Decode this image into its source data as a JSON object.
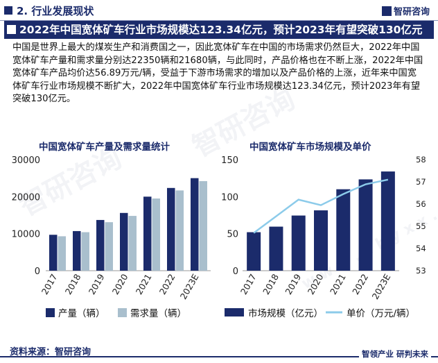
{
  "header": {
    "section_title": "2. 行业发展现状",
    "brand": "智研咨询"
  },
  "headline": "2022年中国宽体矿车行业市场规模达123.34亿元，预计2023年有望突破130亿元",
  "body_text": "中国是世界上最大的煤炭生产和消费国之一，因此宽体矿车在中国的市场需求仍然巨大，2022年中国宽体矿车产量和需求量分别达22350辆和21680辆，与此同时，产品价格也在不断上涨，2022年中国宽体矿车产品均价达56.89万元/辆，受益于下游市场需求的增加以及产品价格的上涨，近年来中国宽体矿车行业市场规模不断扩大，2022年中国宽体矿车行业市场规模达123.34亿元，预计2023年有望突破130亿元。",
  "chart_data": [
    {
      "type": "bar",
      "title": "中国宽体矿车产量及需求量统计",
      "categories": [
        "2017",
        "2018",
        "2019",
        "2020",
        "2021",
        "2022",
        "2023E"
      ],
      "series": [
        {
          "name": "产量（辆）",
          "color": "#1b2b6b",
          "values": [
            9700,
            10700,
            13700,
            15600,
            20000,
            22350,
            25000
          ]
        },
        {
          "name": "需求量（辆）",
          "color": "#a9bfcd",
          "values": [
            9300,
            10400,
            13100,
            14800,
            19500,
            21680,
            24200
          ]
        }
      ],
      "ylim": [
        0,
        30000
      ],
      "yticks": [
        "0",
        "10000",
        "20000",
        "30000"
      ],
      "legend_position": "bottom",
      "grid": false
    },
    {
      "type": "bar+line",
      "title": "中国宽体矿车市场规模及单价",
      "categories": [
        "2017",
        "2018",
        "2019",
        "2020",
        "2021",
        "2022",
        "2023E"
      ],
      "series": [
        {
          "name": "市场规模（亿元）",
          "type": "bar",
          "axis": "left",
          "color": "#1b2b6b",
          "values": [
            52,
            59.5,
            74.5,
            81.5,
            110,
            123.34,
            134
          ]
        },
        {
          "name": "单价（万元/辆）",
          "type": "line",
          "axis": "right",
          "color": "#8ccbea",
          "values": [
            54.7,
            55.45,
            56.2,
            55.95,
            56.45,
            56.89,
            57.1
          ]
        }
      ],
      "ylim_left": [
        0,
        150
      ],
      "yticks_left": [
        "0",
        "50",
        "100",
        "150"
      ],
      "ylim_right": [
        53,
        58
      ],
      "yticks_right": [
        "53",
        "54",
        "55",
        "56",
        "57",
        "58"
      ],
      "legend_position": "bottom",
      "grid": false
    }
  ],
  "footer": {
    "source": "资料来源：智研咨询",
    "brand": "智领产业 研判未来"
  },
  "watermark": {
    "text": "智研咨询",
    "url_text": "w w w . c h y x x . c o m"
  }
}
